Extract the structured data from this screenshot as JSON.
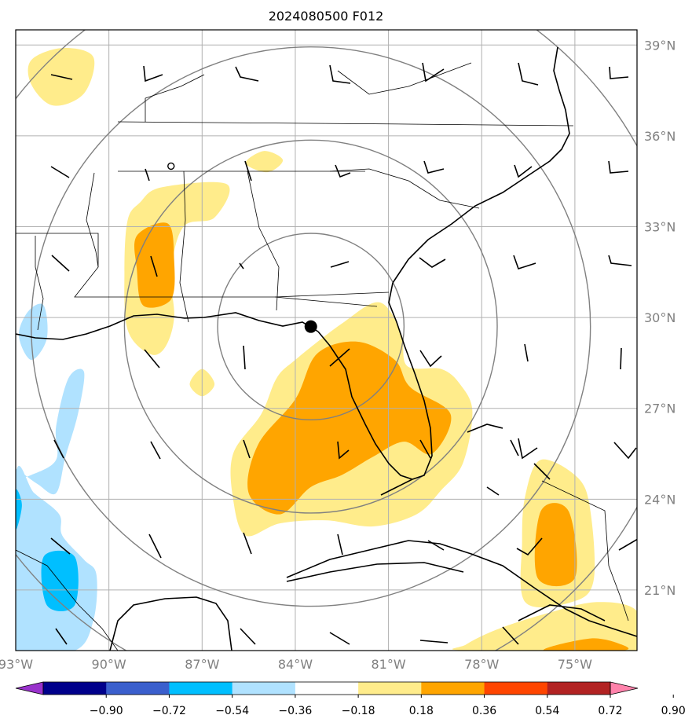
{
  "chart_data": {
    "type": "heatmap",
    "title": "2024080500 F012",
    "projection": "lat-lon map",
    "lon_range": [
      -93.0,
      -73.0
    ],
    "lat_range": [
      19.0,
      39.5
    ],
    "lon_ticks": [
      -93,
      -90,
      -87,
      -84,
      -81,
      -78,
      -75
    ],
    "lon_tick_labels": [
      "93°W",
      "90°W",
      "87°W",
      "84°W",
      "81°W",
      "78°W",
      "75°W"
    ],
    "lat_ticks": [
      21,
      24,
      27,
      30,
      33,
      36,
      39
    ],
    "lat_tick_labels": [
      "21°N",
      "24°N",
      "27°N",
      "30°N",
      "33°N",
      "36°N",
      "39°N"
    ],
    "grid": true,
    "center_marker": {
      "lon": -83.5,
      "lat": 29.7,
      "label": ""
    },
    "small_marker": {
      "lon": -88.0,
      "lat": 35.0
    },
    "range_rings_deg": [
      3,
      6,
      9,
      12
    ],
    "colorbar": {
      "tick_labels": [
        "−0.90",
        "−0.72",
        "−0.54",
        "−0.36",
        "−0.18",
        "0.18",
        "0.36",
        "0.54",
        "0.72",
        "0.90"
      ],
      "levels": [
        -0.9,
        -0.72,
        -0.54,
        -0.36,
        -0.18,
        0.18,
        0.36,
        0.54,
        0.72,
        0.9
      ],
      "colors": [
        "#9932cc",
        "#00008b",
        "#3a5fcd",
        "#00bfff",
        "#b0e2ff",
        "#ffffff",
        "#ffec8b",
        "#ffa500",
        "#ff4500",
        "#b22222",
        "#ff82ab"
      ],
      "extend": "both"
    },
    "regions": [
      {
        "name": "central-gulf-florida",
        "level": 0.18,
        "color": "#ffec8b",
        "path": [
          [
            -84.0,
            28.6
          ],
          [
            -82.5,
            29.8
          ],
          [
            -81.3,
            30.5
          ],
          [
            -80.6,
            29.5
          ],
          [
            -80.4,
            28.4
          ],
          [
            -79.3,
            28.3
          ],
          [
            -78.7,
            27.8
          ],
          [
            -78.3,
            26.9
          ],
          [
            -78.6,
            25.2
          ],
          [
            -79.3,
            24.3
          ],
          [
            -80.1,
            23.5
          ],
          [
            -81.5,
            23.1
          ],
          [
            -83.0,
            23.3
          ],
          [
            -84.5,
            23.2
          ],
          [
            -85.6,
            22.8
          ],
          [
            -86.0,
            24.0
          ],
          [
            -86.0,
            25.5
          ],
          [
            -85.1,
            26.8
          ],
          [
            -84.6,
            28.0
          ]
        ]
      },
      {
        "name": "central-gulf-florida-core",
        "level": 0.36,
        "color": "#ffa500",
        "path": [
          [
            -83.3,
            28.8
          ],
          [
            -82.0,
            29.2
          ],
          [
            -80.8,
            28.6
          ],
          [
            -80.3,
            27.7
          ],
          [
            -79.0,
            26.8
          ],
          [
            -79.6,
            25.5
          ],
          [
            -80.5,
            25.9
          ],
          [
            -81.5,
            25.4
          ],
          [
            -82.5,
            24.8
          ],
          [
            -83.5,
            24.4
          ],
          [
            -84.5,
            23.5
          ],
          [
            -85.5,
            24.2
          ],
          [
            -85.2,
            25.8
          ],
          [
            -84.0,
            27.3
          ]
        ]
      },
      {
        "name": "mississippi-band",
        "level": 0.18,
        "color": "#ffec8b",
        "path": [
          [
            -89.0,
            33.8
          ],
          [
            -88.3,
            34.3
          ],
          [
            -86.2,
            34.4
          ],
          [
            -86.6,
            33.3
          ],
          [
            -87.6,
            33.0
          ],
          [
            -88.0,
            31.5
          ],
          [
            -87.9,
            30.0
          ],
          [
            -88.2,
            29.0
          ],
          [
            -88.7,
            28.8
          ],
          [
            -89.4,
            29.6
          ],
          [
            -89.5,
            31.5
          ],
          [
            -89.4,
            33.2
          ]
        ]
      },
      {
        "name": "mississippi-core",
        "level": 0.36,
        "color": "#ffa500",
        "path": [
          [
            -89.1,
            32.7
          ],
          [
            -88.1,
            33.1
          ],
          [
            -87.9,
            31.9
          ],
          [
            -88.0,
            30.6
          ],
          [
            -88.9,
            30.4
          ],
          [
            -89.1,
            31.6
          ]
        ]
      },
      {
        "name": "tennessee-blob",
        "level": 0.18,
        "color": "#ffec8b",
        "path": [
          [
            -92.5,
            38.5
          ],
          [
            -91.5,
            38.9
          ],
          [
            -90.5,
            38.6
          ],
          [
            -90.8,
            37.4
          ],
          [
            -91.8,
            37.0
          ],
          [
            -92.5,
            37.7
          ]
        ]
      },
      {
        "name": "georgia-blob",
        "level": 0.18,
        "color": "#ffec8b",
        "path": [
          [
            -85.0,
            35.5
          ],
          [
            -84.4,
            35.2
          ],
          [
            -84.9,
            34.8
          ],
          [
            -85.6,
            35.1
          ]
        ]
      },
      {
        "name": "gulf-speck",
        "level": 0.18,
        "color": "#ffec8b",
        "path": [
          [
            -87.0,
            28.3
          ],
          [
            -86.6,
            27.8
          ],
          [
            -87.0,
            27.4
          ],
          [
            -87.4,
            27.8
          ]
        ]
      },
      {
        "name": "bahamas-band",
        "level": 0.18,
        "color": "#ffec8b",
        "path": [
          [
            -76.1,
            25.3
          ],
          [
            -74.9,
            24.7
          ],
          [
            -74.5,
            23.6
          ],
          [
            -74.4,
            21.3
          ],
          [
            -75.1,
            20.6
          ],
          [
            -76.6,
            20.6
          ],
          [
            -76.7,
            22.6
          ],
          [
            -76.6,
            24.1
          ]
        ]
      },
      {
        "name": "bahamas-core",
        "level": 0.36,
        "color": "#ffa500",
        "path": [
          [
            -76.1,
            23.6
          ],
          [
            -75.2,
            23.6
          ],
          [
            -75.0,
            21.4
          ],
          [
            -76.2,
            21.4
          ]
        ]
      },
      {
        "name": "cuba-south",
        "level": 0.18,
        "color": "#ffec8b",
        "path": [
          [
            -78.5,
            19.2
          ],
          [
            -77.5,
            19.7
          ],
          [
            -76.0,
            20.2
          ],
          [
            -74.3,
            20.6
          ],
          [
            -73.0,
            20.3
          ],
          [
            -73.0,
            19.0
          ],
          [
            -78.5,
            19.0
          ]
        ]
      },
      {
        "name": "cuba-south-core",
        "level": 0.36,
        "color": "#ffa500",
        "path": [
          [
            -76.0,
            19.0
          ],
          [
            -74.5,
            19.4
          ],
          [
            -73.5,
            19.2
          ],
          [
            -73.5,
            19.0
          ]
        ]
      },
      {
        "name": "texas-louisiana-west",
        "level": -0.18,
        "color": "#b0e2ff",
        "path": [
          [
            -93.0,
            25.0
          ],
          [
            -92.3,
            24.5
          ],
          [
            -91.7,
            24.2
          ],
          [
            -91.4,
            25.4
          ],
          [
            -91.0,
            26.8
          ],
          [
            -90.8,
            28.2
          ],
          [
            -91.3,
            28.0
          ],
          [
            -91.7,
            26.4
          ],
          [
            -91.7,
            25.3
          ],
          [
            -92.5,
            24.8
          ],
          [
            -93.0,
            24.7
          ]
        ]
      },
      {
        "name": "gulf-southwest",
        "level": -0.18,
        "color": "#b0e2ff",
        "path": [
          [
            -93.0,
            24.8
          ],
          [
            -92.4,
            24.2
          ],
          [
            -91.6,
            23.5
          ],
          [
            -91.5,
            22.8
          ],
          [
            -90.8,
            22.0
          ],
          [
            -90.4,
            21.5
          ],
          [
            -90.5,
            20.0
          ],
          [
            -91.1,
            19.0
          ],
          [
            -93.0,
            19.0
          ]
        ]
      },
      {
        "name": "louisiana-coast",
        "level": -0.18,
        "color": "#b0e2ff",
        "path": [
          [
            -92.6,
            30.2
          ],
          [
            -92.1,
            30.4
          ],
          [
            -92.0,
            29.3
          ],
          [
            -92.5,
            28.6
          ],
          [
            -92.9,
            29.4
          ]
        ]
      },
      {
        "name": "gulf-southwest-core",
        "level": -0.36,
        "color": "#00bfff",
        "path": [
          [
            -92.1,
            22.1
          ],
          [
            -91.1,
            22.1
          ],
          [
            -91.1,
            20.5
          ],
          [
            -92.0,
            20.5
          ]
        ]
      },
      {
        "name": "west-edge-core",
        "level": -0.36,
        "color": "#00bfff",
        "path": [
          [
            -93.0,
            24.3
          ],
          [
            -92.8,
            23.8
          ],
          [
            -93.0,
            23.0
          ]
        ]
      }
    ]
  }
}
